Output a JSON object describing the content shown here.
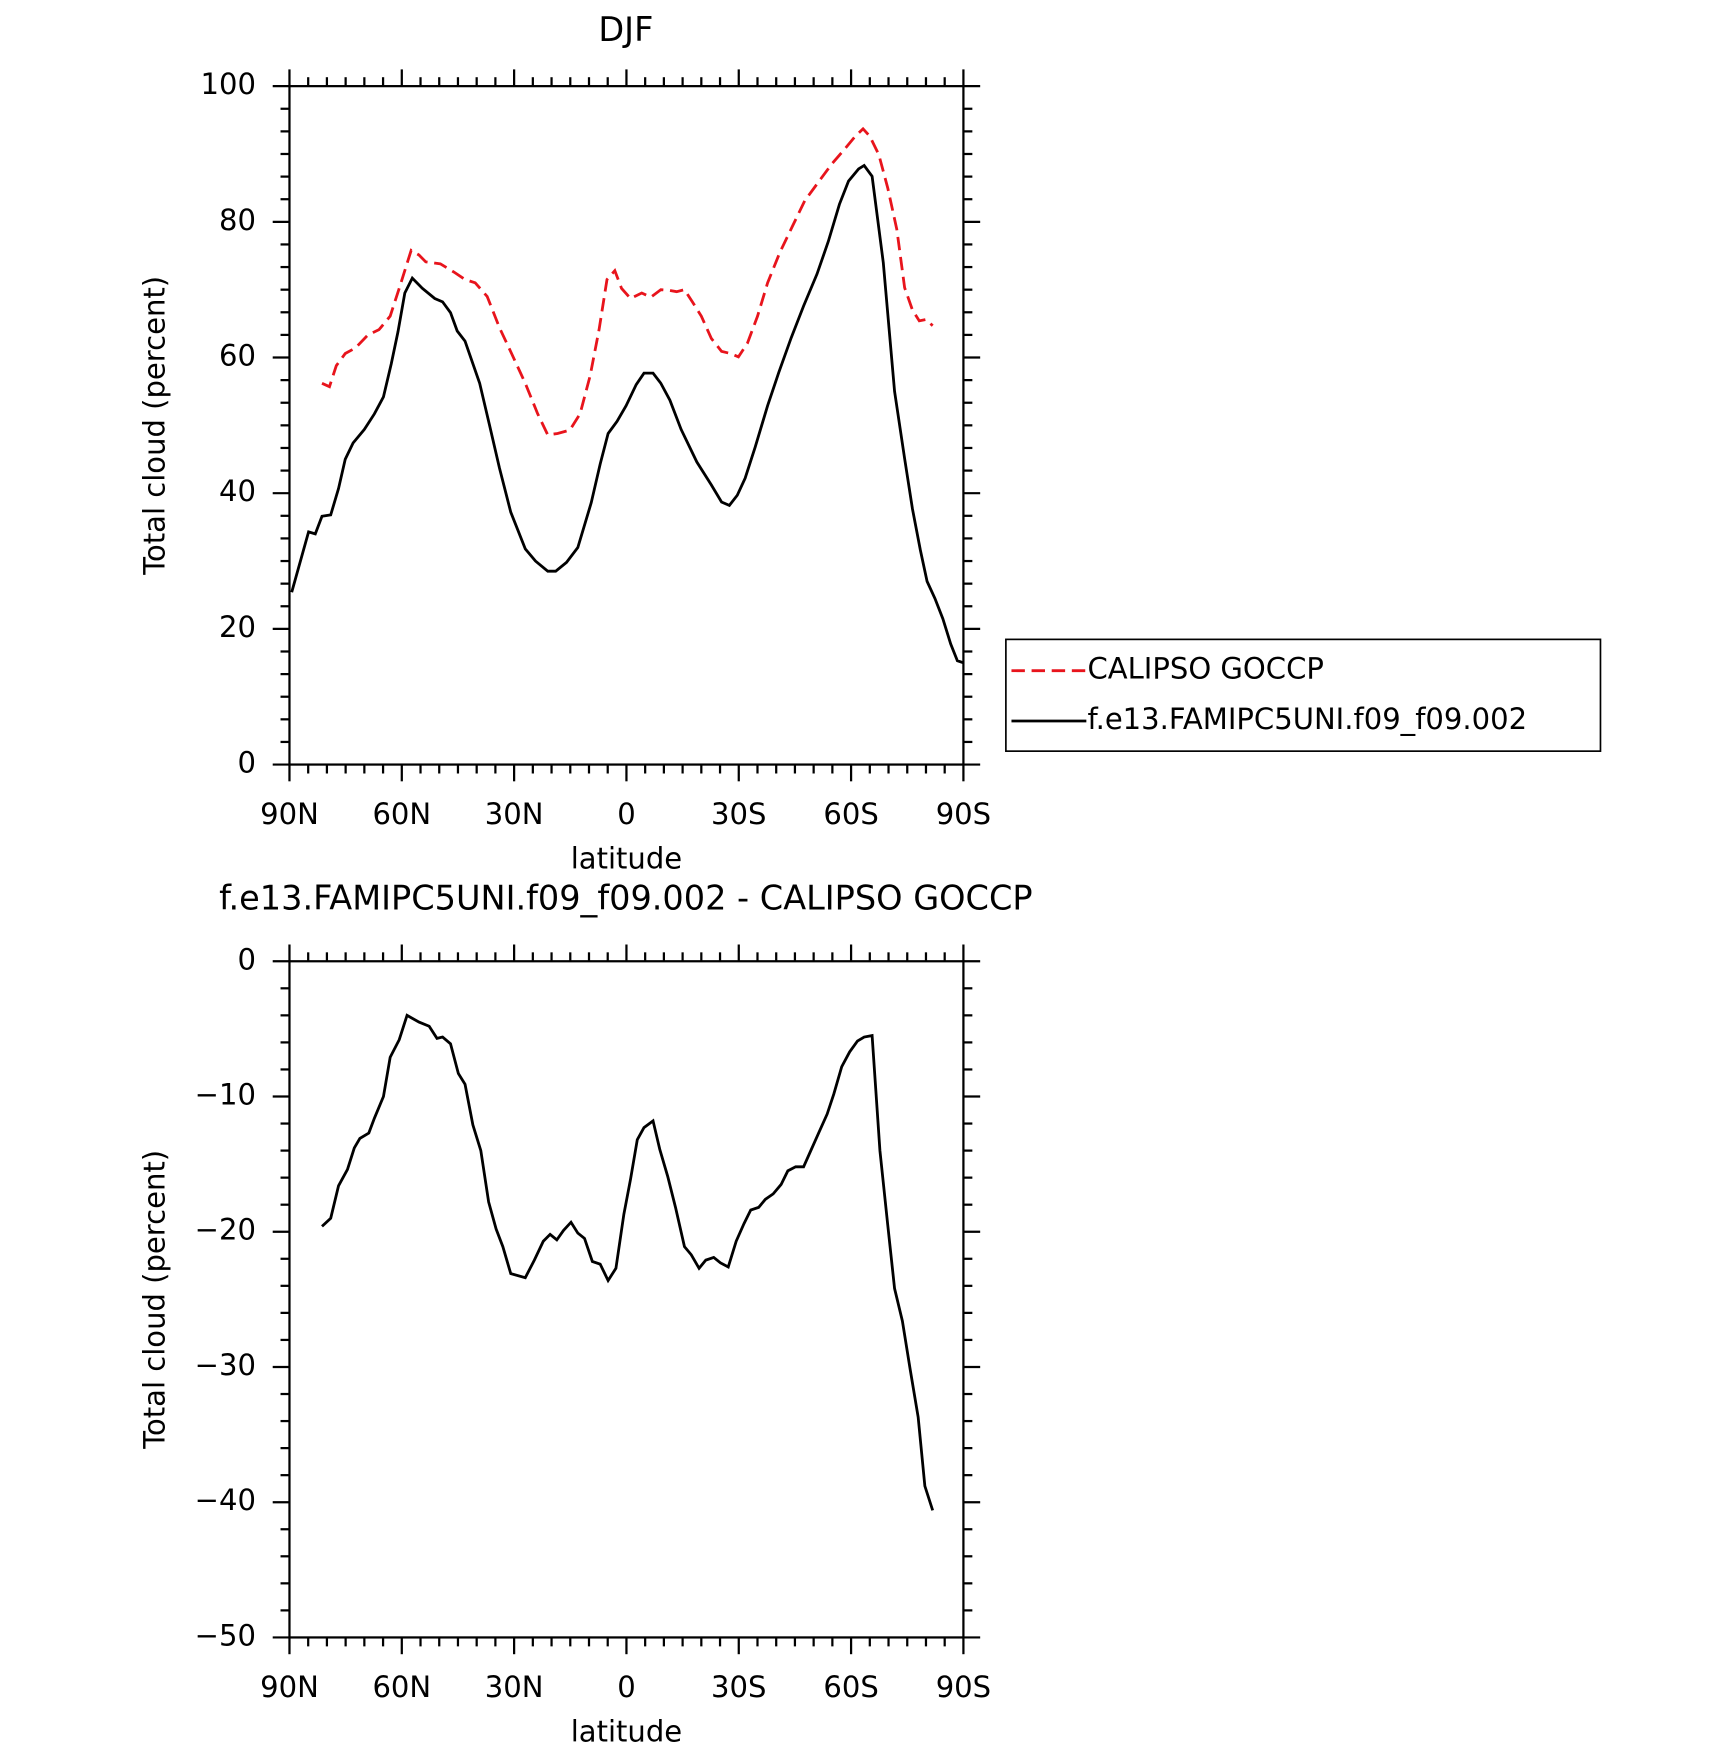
{
  "chart_data": [
    {
      "type": "line",
      "title": "DJF",
      "xlabel": "latitude",
      "ylabel": "Total cloud (percent)",
      "xlim": [
        90,
        -90
      ],
      "xticks": [
        {
          "value": 90,
          "label": "90N"
        },
        {
          "value": 60,
          "label": "60N"
        },
        {
          "value": 30,
          "label": "30N"
        },
        0,
        {
          "value": -30,
          "label": "30S"
        },
        {
          "value": -60,
          "label": "60S"
        },
        {
          "value": -90,
          "label": "90S"
        }
      ],
      "x_minor_per_major": 5,
      "ylim": [
        0,
        100
      ],
      "yticks": [
        0,
        20,
        40,
        60,
        80,
        100
      ],
      "y_minor_per_major": 5,
      "legend": "right",
      "series": [
        {
          "name": "CALIPSO GOCCP",
          "color": "#e8141c",
          "dash": "dashed",
          "x": [
            81.3,
            79.3,
            77.5,
            75.1,
            72.4,
            69.1,
            66.1,
            63.1,
            60.7,
            57.5,
            55.4,
            53.6,
            49.7,
            46.1,
            43.1,
            40.4,
            37.2,
            33.9,
            30.6,
            27.0,
            23.7,
            21.0,
            18.4,
            15.1,
            12.4,
            9.7,
            7.3,
            5.2,
            3.1,
            1.3,
            -1.1,
            -4.1,
            -6.5,
            -9.2,
            -11.3,
            -13.4,
            -15.5,
            -17.6,
            -20.0,
            -22.7,
            -25.4,
            -27.8,
            -29.9,
            -32.3,
            -35.0,
            -37.7,
            -41.0,
            -44.3,
            -47.6,
            -51.2,
            -54.8,
            -58.1,
            -61.1,
            -63.2,
            -65.0,
            -67.4,
            -69.8,
            -72.2,
            -74.3,
            -76.4,
            -78.2,
            -80.0,
            -81.8
          ],
          "values": [
            56.2,
            55.7,
            58.8,
            60.6,
            61.4,
            63.3,
            64.1,
            66.1,
            70.2,
            75.8,
            75.1,
            74.1,
            73.8,
            72.6,
            71.5,
            71.0,
            69.0,
            64.4,
            60.5,
            56.2,
            51.7,
            48.6,
            48.8,
            49.3,
            51.7,
            57.3,
            64.1,
            71.5,
            72.8,
            70.2,
            68.7,
            69.5,
            68.9,
            70.0,
            69.9,
            69.7,
            70.0,
            68.2,
            66.1,
            62.8,
            60.9,
            60.6,
            60.1,
            62.1,
            66.1,
            71.0,
            75.5,
            79.3,
            83.1,
            85.8,
            88.5,
            90.6,
            92.6,
            93.7,
            92.6,
            89.9,
            85.0,
            78.9,
            70.3,
            67.0,
            65.4,
            65.6,
            64.7
          ]
        },
        {
          "name": "f.e13.FAMIPC5UNI.f09_f09.002",
          "color": "#000000",
          "dash": "solid",
          "x": [
            89.4,
            84.9,
            83.1,
            81.3,
            79.0,
            76.9,
            75.1,
            73.0,
            70.0,
            67.3,
            64.9,
            62.8,
            61.0,
            59.2,
            57.2,
            54.5,
            51.2,
            49.1,
            47.0,
            45.2,
            43.1,
            39.2,
            36.6,
            33.9,
            30.9,
            27.0,
            24.3,
            21.0,
            18.9,
            16.0,
            13.0,
            9.4,
            7.0,
            4.9,
            2.5,
            0.1,
            -2.6,
            -4.7,
            -7.1,
            -9.2,
            -11.6,
            -14.6,
            -18.8,
            -22.7,
            -25.4,
            -27.5,
            -29.6,
            -31.7,
            -34.4,
            -37.7,
            -40.7,
            -44.0,
            -47.3,
            -50.9,
            -53.9,
            -56.9,
            -59.3,
            -62.0,
            -63.5,
            -65.6,
            -68.6,
            -71.6,
            -74.3,
            -76.4,
            -78.5,
            -80.3,
            -82.4,
            -84.5,
            -86.6,
            -88.4,
            -90.0
          ],
          "values": [
            25.4,
            34.3,
            34.0,
            36.6,
            36.8,
            40.7,
            45.0,
            47.4,
            49.4,
            51.7,
            54.2,
            59.1,
            63.8,
            69.5,
            71.7,
            70.2,
            68.7,
            68.2,
            66.6,
            63.9,
            62.4,
            56.2,
            50.1,
            43.7,
            37.2,
            31.8,
            30.0,
            28.5,
            28.5,
            29.8,
            32.0,
            38.6,
            44.3,
            48.8,
            50.6,
            52.9,
            56.0,
            57.7,
            57.7,
            56.2,
            53.7,
            49.4,
            44.6,
            41.2,
            38.7,
            38.2,
            39.7,
            42.2,
            46.8,
            52.9,
            57.8,
            62.9,
            67.6,
            72.3,
            77.1,
            82.6,
            86.0,
            87.8,
            88.3,
            86.7,
            74.0,
            55.0,
            45.1,
            37.7,
            31.6,
            27.0,
            24.5,
            21.5,
            17.8,
            15.3,
            15.0
          ]
        }
      ]
    },
    {
      "type": "line",
      "title": "f.e13.FAMIPC5UNI.f09_f09.002 - CALIPSO GOCCP",
      "xlabel": "latitude",
      "ylabel": "Total cloud (percent)",
      "xlim": [
        90,
        -90
      ],
      "xticks": [
        {
          "value": 90,
          "label": "90N"
        },
        {
          "value": 60,
          "label": "60N"
        },
        {
          "value": 30,
          "label": "30N"
        },
        0,
        {
          "value": -30,
          "label": "30S"
        },
        {
          "value": -60,
          "label": "60S"
        },
        {
          "value": -90,
          "label": "90S"
        }
      ],
      "x_minor_per_major": 5,
      "ylim": [
        -50,
        0
      ],
      "yticks": [
        {
          "value": -50,
          "label": "−50"
        },
        {
          "value": -40,
          "label": "−40"
        },
        {
          "value": -30,
          "label": "−30"
        },
        {
          "value": -20,
          "label": "−20"
        },
        {
          "value": -10,
          "label": "−10"
        },
        0
      ],
      "y_minor_per_major": 4,
      "series": [
        {
          "color": "#000000",
          "dash": "solid",
          "x": [
            81.3,
            79.0,
            76.9,
            74.5,
            72.7,
            71.2,
            68.8,
            67.3,
            64.9,
            63.1,
            60.7,
            58.6,
            55.4,
            52.7,
            50.6,
            49.1,
            47.0,
            44.9,
            43.1,
            41.0,
            38.9,
            36.8,
            34.8,
            33.0,
            30.9,
            27.0,
            24.6,
            22.2,
            20.4,
            18.6,
            16.8,
            14.8,
            13.0,
            11.2,
            9.1,
            7.0,
            4.9,
            2.8,
            0.7,
            -1.1,
            -2.9,
            -4.7,
            -7.1,
            -8.9,
            -11.0,
            -13.1,
            -15.5,
            -17.3,
            -19.4,
            -21.2,
            -23.3,
            -25.1,
            -27.2,
            -29.3,
            -31.4,
            -33.2,
            -35.3,
            -37.1,
            -39.2,
            -41.3,
            -43.1,
            -45.2,
            -47.3,
            -49.4,
            -51.5,
            -53.6,
            -55.4,
            -57.5,
            -59.6,
            -61.7,
            -63.5,
            -65.6,
            -67.7,
            -69.8,
            -71.6,
            -73.7,
            -75.8,
            -77.9,
            -79.7,
            -81.8
          ],
          "values": [
            -19.6,
            -19.0,
            -16.6,
            -15.4,
            -13.8,
            -13.1,
            -12.7,
            -11.6,
            -10.0,
            -7.1,
            -5.8,
            -4.0,
            -4.5,
            -4.8,
            -5.7,
            -5.6,
            -6.1,
            -8.3,
            -9.1,
            -12.1,
            -14.0,
            -17.8,
            -19.8,
            -21.1,
            -23.1,
            -23.4,
            -22.1,
            -20.7,
            -20.2,
            -20.6,
            -19.9,
            -19.3,
            -20.1,
            -20.5,
            -22.2,
            -22.4,
            -23.6,
            -22.7,
            -18.7,
            -16.1,
            -13.2,
            -12.3,
            -11.8,
            -13.9,
            -15.9,
            -18.2,
            -21.1,
            -21.7,
            -22.7,
            -22.1,
            -21.9,
            -22.3,
            -22.6,
            -20.7,
            -19.4,
            -18.4,
            -18.2,
            -17.6,
            -17.2,
            -16.5,
            -15.5,
            -15.2,
            -15.2,
            -13.9,
            -12.6,
            -11.3,
            -9.8,
            -7.8,
            -6.7,
            -5.9,
            -5.6,
            -5.5,
            -14.0,
            -19.5,
            -24.2,
            -26.6,
            -30.2,
            -33.7,
            -38.8,
            -40.6
          ]
        }
      ]
    }
  ]
}
